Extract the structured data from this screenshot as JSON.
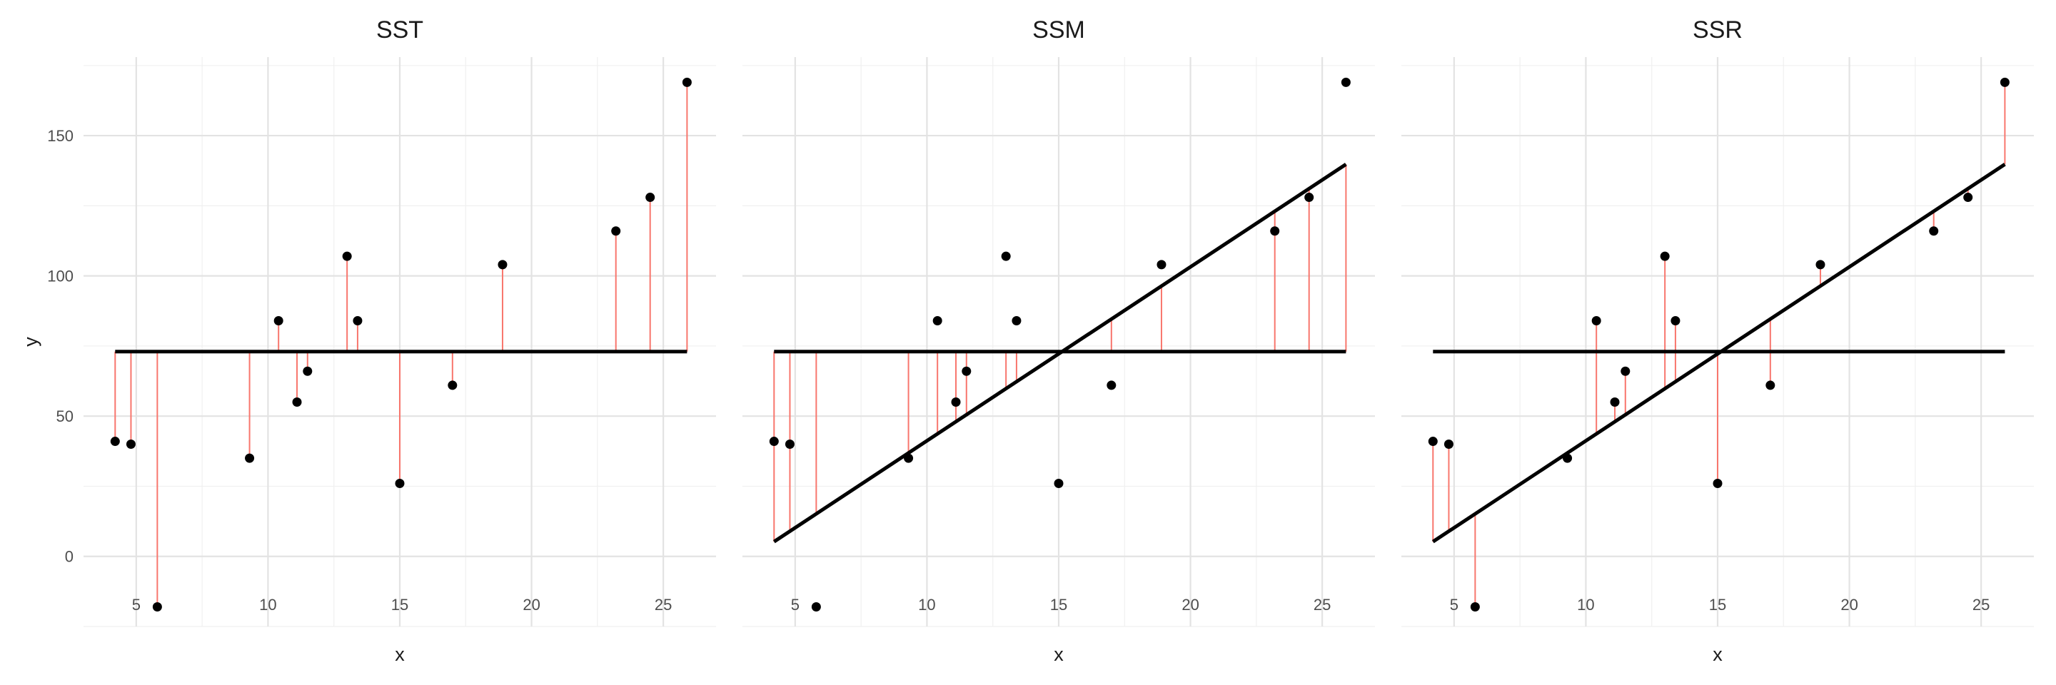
{
  "chart_data": [
    {
      "type": "scatter",
      "title": "SST",
      "xlabel": "x",
      "ylabel": "y",
      "xlim": [
        3.0,
        27.0
      ],
      "ylim": [
        -25,
        178
      ],
      "x_ticks": [
        5,
        10,
        15,
        20,
        25
      ],
      "y_ticks": [
        0,
        50,
        100,
        150
      ],
      "grid": true,
      "x": [
        4.2,
        4.8,
        5.8,
        9.3,
        10.4,
        11.1,
        11.5,
        13.0,
        13.4,
        15.0,
        17.0,
        18.9,
        23.2,
        24.5,
        25.9
      ],
      "y": [
        41,
        40,
        -18,
        35,
        84,
        55,
        66,
        107,
        84,
        26,
        61,
        104,
        116,
        128,
        169
      ],
      "mean_y": 73,
      "fit": {
        "intercept": -20.8,
        "slope": 6.2,
        "x_range": [
          4.2,
          25.9
        ]
      },
      "segments": "observed-to-mean",
      "show_mean_line": true,
      "show_fit_line": false,
      "segment_color": "#f8766d"
    },
    {
      "type": "scatter",
      "title": "SSM",
      "xlabel": "x",
      "ylabel": "",
      "xlim": [
        3.0,
        27.0
      ],
      "ylim": [
        -25,
        178
      ],
      "x_ticks": [
        5,
        10,
        15,
        20,
        25
      ],
      "y_ticks": [
        0,
        50,
        100,
        150
      ],
      "grid": true,
      "x": [
        4.2,
        4.8,
        5.8,
        9.3,
        10.4,
        11.1,
        11.5,
        13.0,
        13.4,
        15.0,
        17.0,
        18.9,
        23.2,
        24.5,
        25.9
      ],
      "y": [
        41,
        40,
        -18,
        35,
        84,
        55,
        66,
        107,
        84,
        26,
        61,
        104,
        116,
        128,
        169
      ],
      "mean_y": 73,
      "fit": {
        "intercept": -20.8,
        "slope": 6.2,
        "x_range": [
          4.2,
          25.9
        ]
      },
      "segments": "mean-to-fitted",
      "show_mean_line": true,
      "show_fit_line": true,
      "segment_color": "#f8766d"
    },
    {
      "type": "scatter",
      "title": "SSR",
      "xlabel": "x",
      "ylabel": "",
      "xlim": [
        3.0,
        27.0
      ],
      "ylim": [
        -25,
        178
      ],
      "x_ticks": [
        5,
        10,
        15,
        20,
        25
      ],
      "y_ticks": [
        0,
        50,
        100,
        150
      ],
      "grid": true,
      "x": [
        4.2,
        4.8,
        5.8,
        9.3,
        10.4,
        11.1,
        11.5,
        13.0,
        13.4,
        15.0,
        17.0,
        18.9,
        23.2,
        24.5,
        25.9
      ],
      "y": [
        41,
        40,
        -18,
        35,
        84,
        55,
        66,
        107,
        84,
        26,
        61,
        104,
        116,
        128,
        169
      ],
      "mean_y": 73,
      "fit": {
        "intercept": -20.8,
        "slope": 6.2,
        "x_range": [
          4.2,
          25.9
        ]
      },
      "segments": "observed-to-fitted",
      "show_mean_line": true,
      "show_fit_line": true,
      "segment_color": "#f8766d"
    }
  ]
}
